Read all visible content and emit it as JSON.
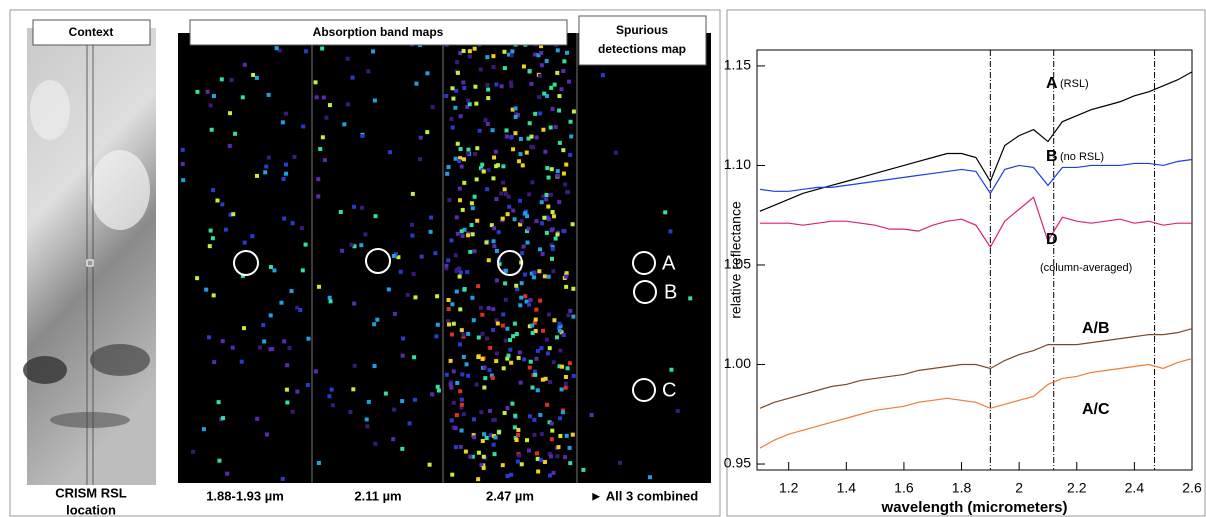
{
  "panels": {
    "context": {
      "title": "Context",
      "caption_lines": [
        "CRISM RSL",
        "location"
      ]
    },
    "band_maps": {
      "title": "Absorption band maps",
      "captions": [
        "1.88-1.93 µm",
        "2.11 µm",
        "2.47 µm"
      ]
    },
    "spurious": {
      "title_lines": [
        "Spurious",
        "detections map"
      ],
      "caption": "► All 3 combined"
    },
    "detection_labels": [
      "A",
      "B",
      "C"
    ]
  },
  "chart_data": {
    "type": "line",
    "xlabel": "wavelength (micrometers)",
    "ylabel": "relative reflectance",
    "x": [
      1.1,
      1.15,
      1.2,
      1.25,
      1.3,
      1.35,
      1.4,
      1.45,
      1.5,
      1.55,
      1.6,
      1.65,
      1.7,
      1.75,
      1.8,
      1.85,
      1.9,
      1.95,
      2.0,
      2.05,
      2.1,
      2.15,
      2.2,
      2.25,
      2.3,
      2.35,
      2.4,
      2.45,
      2.5,
      2.55,
      2.6
    ],
    "series": [
      {
        "name": "A",
        "note": "(RSL)",
        "color": "#000000",
        "values": [
          1.077,
          1.08,
          1.083,
          1.086,
          1.088,
          1.09,
          1.092,
          1.094,
          1.096,
          1.098,
          1.1,
          1.102,
          1.104,
          1.106,
          1.106,
          1.104,
          1.092,
          1.11,
          1.115,
          1.118,
          1.112,
          1.122,
          1.125,
          1.128,
          1.13,
          1.132,
          1.135,
          1.137,
          1.14,
          1.143,
          1.147
        ]
      },
      {
        "name": "B",
        "note": "(no RSL)",
        "color": "#1f3fe0",
        "values": [
          1.088,
          1.087,
          1.087,
          1.088,
          1.089,
          1.089,
          1.09,
          1.091,
          1.092,
          1.093,
          1.094,
          1.095,
          1.096,
          1.097,
          1.098,
          1.097,
          1.086,
          1.098,
          1.1,
          1.099,
          1.09,
          1.099,
          1.099,
          1.1,
          1.1,
          1.1,
          1.101,
          1.101,
          1.1,
          1.102,
          1.103
        ]
      },
      {
        "name": "D",
        "note": "(column-averaged)",
        "color": "#d6247a",
        "values": [
          1.071,
          1.071,
          1.071,
          1.07,
          1.071,
          1.072,
          1.072,
          1.071,
          1.07,
          1.068,
          1.068,
          1.067,
          1.07,
          1.072,
          1.073,
          1.07,
          1.059,
          1.072,
          1.078,
          1.084,
          1.062,
          1.074,
          1.072,
          1.071,
          1.072,
          1.073,
          1.071,
          1.072,
          1.07,
          1.071,
          1.071
        ]
      },
      {
        "name": "A/B",
        "color": "#7a4a2a",
        "values": [
          0.978,
          0.981,
          0.983,
          0.985,
          0.987,
          0.989,
          0.99,
          0.992,
          0.993,
          0.994,
          0.995,
          0.997,
          0.998,
          0.999,
          1.0,
          1.0,
          0.998,
          1.002,
          1.005,
          1.007,
          1.01,
          1.01,
          1.01,
          1.011,
          1.012,
          1.013,
          1.014,
          1.015,
          1.015,
          1.016,
          1.018
        ]
      },
      {
        "name": "A/C",
        "color": "#f07b3a",
        "values": [
          0.958,
          0.962,
          0.965,
          0.967,
          0.969,
          0.971,
          0.973,
          0.975,
          0.977,
          0.978,
          0.979,
          0.981,
          0.982,
          0.983,
          0.982,
          0.981,
          0.978,
          0.98,
          0.982,
          0.984,
          0.99,
          0.993,
          0.994,
          0.996,
          0.997,
          0.998,
          0.999,
          1.0,
          0.998,
          1.001,
          1.003
        ]
      }
    ],
    "xlim": [
      1.09,
      2.6
    ],
    "ylim": [
      0.947,
      1.158
    ],
    "xticks": [
      1.2,
      1.4,
      1.6,
      1.8,
      2.0,
      2.2,
      2.4,
      2.6
    ],
    "yticks": [
      1.15,
      {
        "value": 1.1,
        "label": "1.10"
      },
      1.05,
      {
        "value": 1.0,
        "label": "1.00"
      },
      0.95
    ],
    "reference_lines": [
      1.9,
      2.12,
      2.47
    ]
  }
}
